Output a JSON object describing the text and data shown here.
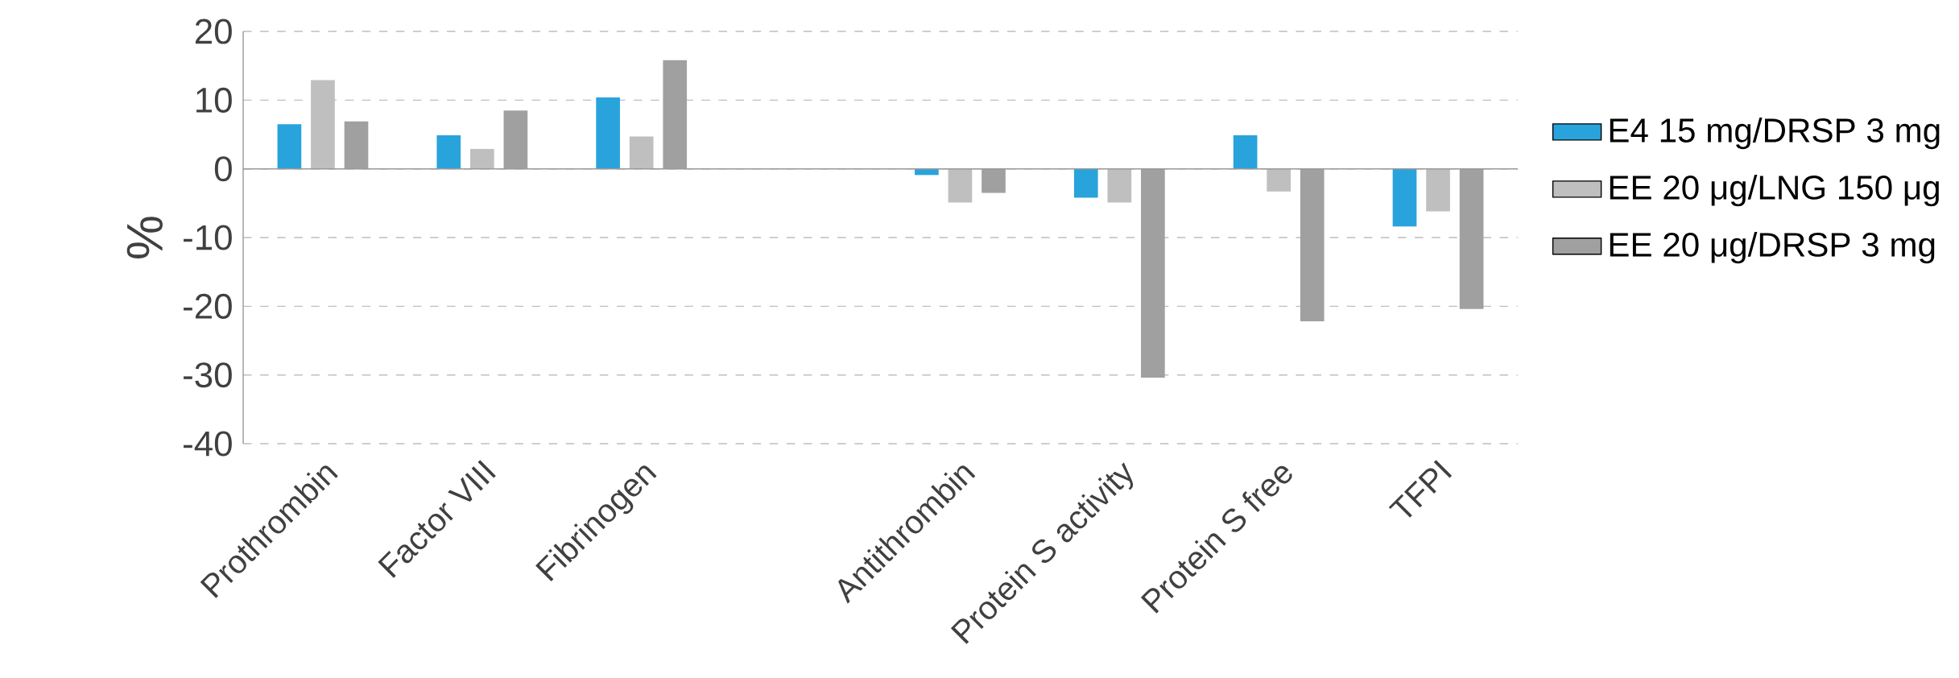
{
  "chart_data": {
    "type": "bar",
    "ylabel": "%",
    "categories": [
      "Prothrombin",
      "Factor VIII",
      "Fibrinogen",
      null,
      "Antithrombin",
      "Protein S activity",
      "Protein S free",
      "TFPI"
    ],
    "series": [
      {
        "name": "E4 15 mg/DRSP 3 mg",
        "color": "#29a3dc",
        "values": [
          6.5,
          4.9,
          10.4,
          null,
          -0.9,
          -4.2,
          4.9,
          -8.4
        ]
      },
      {
        "name": "EE 20 μg/LNG 150 μg",
        "color": "#bfbfbf",
        "values": [
          12.9,
          2.9,
          4.7,
          null,
          -4.9,
          -4.9,
          -3.3,
          -6.2
        ]
      },
      {
        "name": "EE 20 μg/DRSP 3 mg",
        "color": "#a0a0a0",
        "values": [
          6.9,
          8.5,
          15.8,
          null,
          -3.5,
          -30.4,
          -22.2,
          -20.4
        ]
      }
    ],
    "ylim": [
      -40,
      20
    ],
    "yticks": [
      -40,
      -30,
      -20,
      -10,
      0,
      10,
      20
    ],
    "grid": "y",
    "legend": "right"
  }
}
